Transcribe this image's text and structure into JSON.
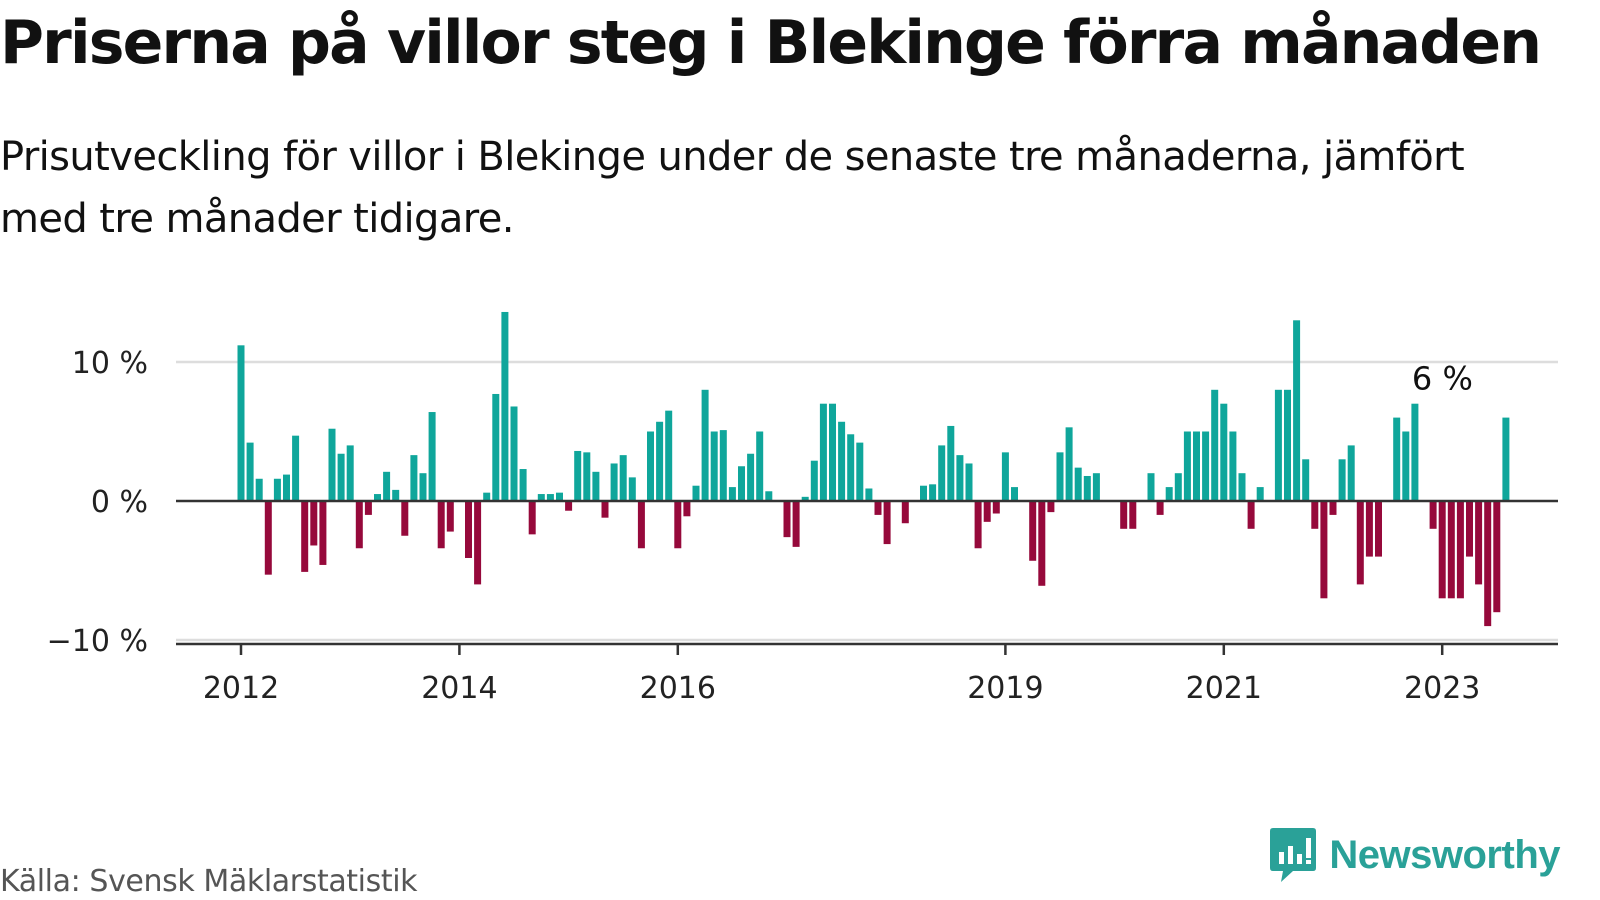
{
  "title": "Priserna på villor steg i Blekinge förra månaden",
  "subtitle": "Prisutveckling för villor i Blekinge under de senaste tre månaderna, jämfört med tre månader tidigare.",
  "source": "Källa: Svensk Mäklarstatistik",
  "brand": {
    "name": "Newsworthy",
    "icon": "newsworthy-logo-icon",
    "color": "#2aa198"
  },
  "colors": {
    "positive": "#0fa69b",
    "negative": "#96093b",
    "zero_line": "#333333",
    "grid": "#dddddd",
    "axis": "#333333"
  },
  "chart_data": {
    "type": "bar",
    "title": "Priserna på villor steg i Blekinge förra månaden",
    "subtitle": "Prisutveckling för villor i Blekinge under de senaste tre månaderna, jämfört med tre månader tidigare.",
    "x_start": "2012-01",
    "x_end": "2023-03",
    "ylim": [
      -10,
      14
    ],
    "yticks": [
      -10,
      0,
      10
    ],
    "ytick_labels": [
      "−10 %",
      "0 %",
      "10 %"
    ],
    "xticks": [
      "2012-01",
      "2014-01",
      "2016-01",
      "2019-01",
      "2021-01",
      "2023-01"
    ],
    "xtick_labels": [
      "2012",
      "2014",
      "2016",
      "2019",
      "2021",
      "2023"
    ],
    "grid": true,
    "annotation": {
      "text": "6 %",
      "x": "2023-03",
      "value": 6
    },
    "values": [
      11.2,
      4.2,
      1.6,
      -5.3,
      1.6,
      1.9,
      4.7,
      -5.1,
      -3.2,
      -4.6,
      5.2,
      3.4,
      4.0,
      -3.4,
      -1.0,
      0.5,
      2.1,
      0.8,
      -2.5,
      3.3,
      2.0,
      6.4,
      -3.4,
      -2.2,
      0.0,
      -4.1,
      -6.0,
      0.6,
      7.7,
      13.6,
      6.8,
      2.3,
      -2.4,
      0.5,
      0.5,
      0.6,
      -0.7,
      3.6,
      3.5,
      2.1,
      -1.2,
      2.7,
      3.3,
      1.7,
      -3.4,
      5.0,
      5.7,
      6.5,
      -3.4,
      -1.1,
      1.1,
      8.0,
      5.0,
      5.1,
      1.0,
      2.5,
      3.4,
      5.0,
      0.7,
      0.0,
      -2.6,
      -3.3,
      0.3,
      2.9,
      7.0,
      7.0,
      5.7,
      4.8,
      4.2,
      0.9,
      -1.0,
      -3.1,
      0.0,
      -1.6,
      0.0,
      1.1,
      1.2,
      4.0,
      5.4,
      3.3,
      2.7,
      -3.4,
      -1.5,
      -0.9,
      3.5,
      1.0,
      0.0,
      -4.3,
      -6.1,
      -0.8,
      3.5,
      5.3,
      2.4,
      1.8,
      2.0,
      0.0,
      0.0,
      -2.0,
      -2.0,
      0.0,
      2.0,
      -1.0,
      1.0,
      2.0,
      5.0,
      5.0,
      5.0,
      8.0,
      7.0,
      5.0,
      2.0,
      -2.0,
      1.0,
      0.0,
      8.0,
      8.0,
      13.0,
      3.0,
      -2.0,
      -7.0,
      -1.0,
      3.0,
      4.0,
      -6.0,
      -4.0,
      -4.0,
      0.0,
      6.0,
      5.0,
      7.0,
      0.0,
      -2.0,
      -7.0,
      -7.0,
      -7.0,
      -4.0,
      -6.0,
      -9.0,
      -8.0,
      6.0
    ]
  }
}
